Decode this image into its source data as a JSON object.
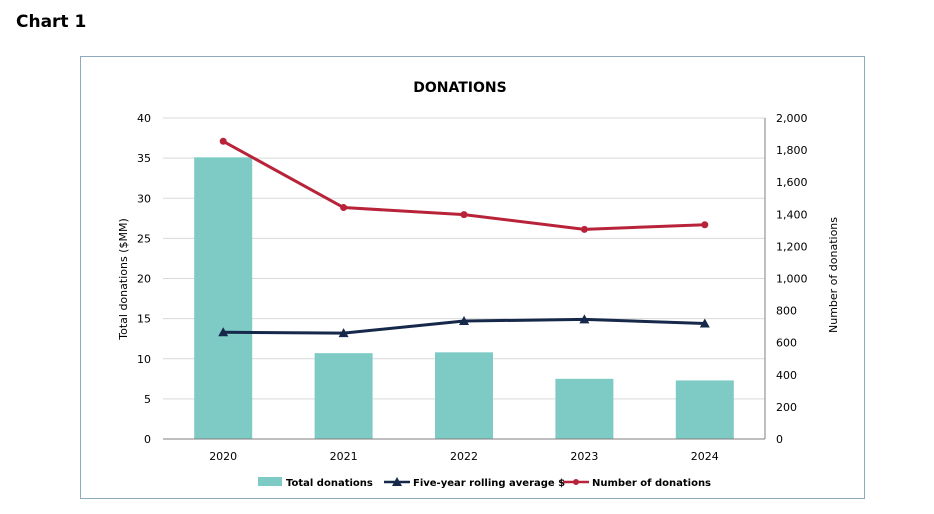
{
  "page_heading": "Chart 1",
  "chart_data": {
    "type": "bar",
    "title": "DONATIONS",
    "categories": [
      "2020",
      "2021",
      "2022",
      "2023",
      "2024"
    ],
    "ylabel": "Total donations ($MM)",
    "y2label": "Number of donations",
    "ylim": [
      0,
      40
    ],
    "yticks": [
      "0",
      "5",
      "10",
      "15",
      "20",
      "25",
      "30",
      "35",
      "40"
    ],
    "y2lim": [
      0,
      2000
    ],
    "y2ticks": [
      "0",
      "200",
      "400",
      "600",
      "800",
      "1,000",
      "1,200",
      "1,400",
      "1,600",
      "1,800",
      "2,000"
    ],
    "grid": true,
    "legend_position": "bottom",
    "series": [
      {
        "name": "Total donations",
        "kind": "bar",
        "axis": "left",
        "color": "#7ecbc6",
        "values": [
          35.1,
          10.7,
          10.8,
          7.5,
          7.3
        ]
      },
      {
        "name": "Five-year rolling average  $",
        "kind": "line",
        "axis": "left",
        "marker": "triangle",
        "color": "#17294a",
        "values": [
          13.3,
          13.2,
          14.7,
          14.9,
          14.4
        ]
      },
      {
        "name": "Number of donations",
        "kind": "line",
        "axis": "right",
        "marker": "circle",
        "color": "#b8233a",
        "values": [
          1855,
          1442,
          1398,
          1306,
          1335
        ]
      }
    ]
  }
}
